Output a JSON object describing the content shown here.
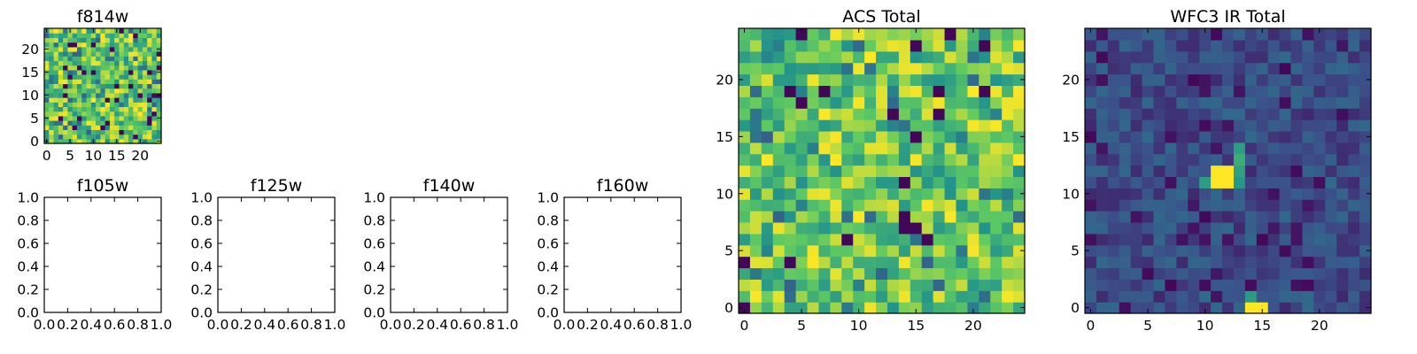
{
  "colors": {
    "viridis": [
      "#440154",
      "#3b528b",
      "#21918c",
      "#5ec962",
      "#fde725"
    ],
    "frame": "#000000",
    "background": "#ffffff"
  },
  "chart_data": [
    {
      "name": "f814w",
      "type": "heatmap",
      "title": "f814w",
      "grid_size": 25,
      "xlim": [
        -0.5,
        24.5
      ],
      "ylim": [
        -0.5,
        24.5
      ],
      "xticks": [
        "0",
        "5",
        "10",
        "15",
        "20"
      ],
      "yticks": [
        "0",
        "5",
        "10",
        "15",
        "20"
      ],
      "colormap": "viridis",
      "seed": 814,
      "pattern": "noise-bright",
      "z_range": [
        0,
        1
      ]
    },
    {
      "name": "f105w",
      "type": "empty",
      "title": "f105w",
      "xlim": [
        0,
        1
      ],
      "ylim": [
        0,
        1
      ],
      "xticks": [
        "0.0",
        "0.2",
        "0.4",
        "0.6",
        "0.8",
        "1.0"
      ],
      "yticks": [
        "0.0",
        "0.2",
        "0.4",
        "0.6",
        "0.8",
        "1.0"
      ]
    },
    {
      "name": "f125w",
      "type": "empty",
      "title": "f125w",
      "xlim": [
        0,
        1
      ],
      "ylim": [
        0,
        1
      ],
      "xticks": [
        "0.0",
        "0.2",
        "0.4",
        "0.6",
        "0.8",
        "1.0"
      ],
      "yticks": [
        "0.0",
        "0.2",
        "0.4",
        "0.6",
        "0.8",
        "1.0"
      ]
    },
    {
      "name": "f140w",
      "type": "empty",
      "title": "f140w",
      "xlim": [
        0,
        1
      ],
      "ylim": [
        0,
        1
      ],
      "xticks": [
        "0.0",
        "0.2",
        "0.4",
        "0.6",
        "0.8",
        "1.0"
      ],
      "yticks": [
        "0.0",
        "0.2",
        "0.4",
        "0.6",
        "0.8",
        "1.0"
      ]
    },
    {
      "name": "f160w",
      "type": "empty",
      "title": "f160w",
      "xlim": [
        0,
        1
      ],
      "ylim": [
        0,
        1
      ],
      "xticks": [
        "0.0",
        "0.2",
        "0.4",
        "0.6",
        "0.8",
        "1.0"
      ],
      "yticks": [
        "0.0",
        "0.2",
        "0.4",
        "0.6",
        "0.8",
        "1.0"
      ]
    },
    {
      "name": "acs-total",
      "type": "heatmap",
      "title": "ACS Total",
      "grid_size": 25,
      "xlim": [
        -0.5,
        24.5
      ],
      "ylim": [
        -0.5,
        24.5
      ],
      "xticks": [
        "0",
        "5",
        "10",
        "15",
        "20"
      ],
      "yticks": [
        "0",
        "5",
        "10",
        "15",
        "20"
      ],
      "colormap": "viridis",
      "seed": 2024,
      "pattern": "noise-bright",
      "z_range": [
        0,
        1
      ]
    },
    {
      "name": "wfc3-ir-total",
      "type": "heatmap",
      "title": "WFC3 IR Total",
      "grid_size": 25,
      "xlim": [
        -0.5,
        24.5
      ],
      "ylim": [
        -0.5,
        24.5
      ],
      "xticks": [
        "0",
        "5",
        "10",
        "15",
        "20"
      ],
      "yticks": [
        "0",
        "5",
        "10",
        "15",
        "20"
      ],
      "colormap": "viridis",
      "seed": 1600,
      "pattern": "noise-dark-with-source",
      "z_range": [
        0,
        1
      ],
      "bright_pixels": [
        [
          11,
          11
        ],
        [
          12,
          11
        ],
        [
          11,
          12
        ],
        [
          12,
          12
        ],
        [
          14,
          0
        ],
        [
          15,
          0
        ]
      ],
      "mid_pixels": [
        [
          13,
          14
        ],
        [
          13,
          13
        ],
        [
          13,
          12
        ],
        [
          10,
          11
        ],
        [
          13,
          11
        ],
        [
          14,
          1
        ]
      ]
    }
  ]
}
